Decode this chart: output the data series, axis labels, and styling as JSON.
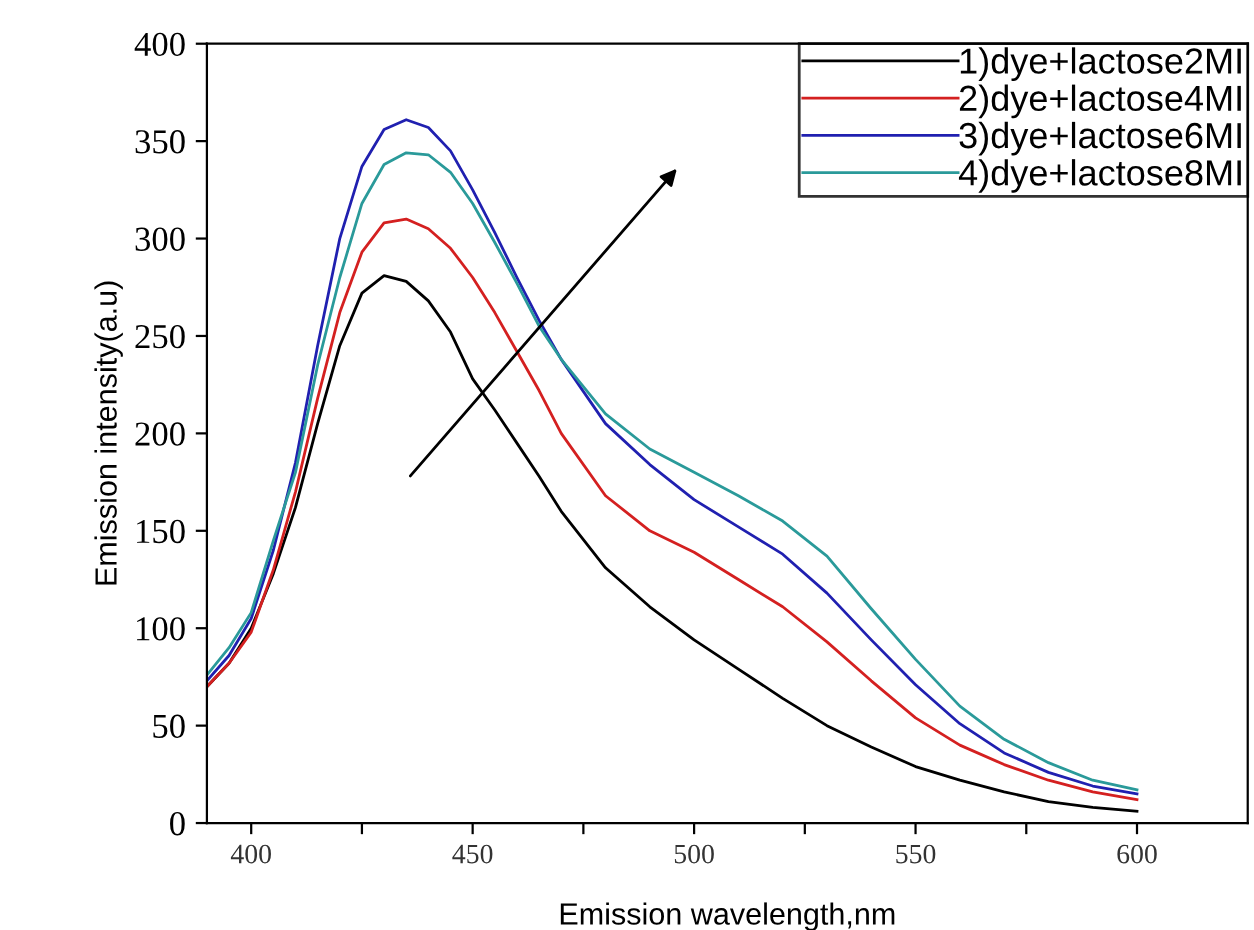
{
  "chart_data": {
    "type": "line",
    "xlabel": "Emission wavelength,nm",
    "ylabel": "Emission intensity(a.u)",
    "x": [
      390,
      395,
      400,
      405,
      410,
      415,
      420,
      425,
      430,
      435,
      440,
      445,
      450,
      455,
      460,
      465,
      470,
      480,
      490,
      500,
      510,
      520,
      530,
      540,
      550,
      560,
      570,
      580,
      590,
      600
    ],
    "series": [
      {
        "name": "1)dye+lactose2MI",
        "color": "#000000",
        "values": [
          70,
          82,
          100,
          128,
          162,
          205,
          245,
          272,
          281,
          278,
          268,
          252,
          228,
          212,
          195,
          178,
          160,
          131,
          111,
          94,
          79,
          64,
          50,
          39,
          29,
          22,
          16,
          11,
          8,
          6
        ]
      },
      {
        "name": "2)dye+lactose4MI",
        "color": "#d42020",
        "values": [
          70,
          82,
          98,
          130,
          170,
          218,
          262,
          293,
          308,
          310,
          305,
          295,
          280,
          262,
          242,
          222,
          200,
          168,
          150,
          139,
          125,
          111,
          93,
          73,
          54,
          40,
          30,
          22,
          16,
          12
        ]
      },
      {
        "name": "3)dye+lactose6MI",
        "color": "#2020b0",
        "values": [
          73,
          86,
          105,
          140,
          185,
          245,
          300,
          337,
          356,
          361,
          357,
          345,
          325,
          303,
          280,
          258,
          238,
          205,
          184,
          166,
          152,
          138,
          118,
          94,
          71,
          51,
          36,
          26,
          19,
          15
        ]
      },
      {
        "name": "4)dye+lactose8MI",
        "color": "#2a9a9a",
        "values": [
          76,
          90,
          108,
          145,
          180,
          235,
          280,
          318,
          338,
          344,
          343,
          334,
          318,
          298,
          277,
          255,
          238,
          210,
          192,
          180,
          168,
          155,
          137,
          110,
          84,
          60,
          43,
          31,
          22,
          17
        ]
      }
    ],
    "xlim": [
      390,
      625
    ],
    "ylim": [
      0,
      400
    ],
    "xticks": [
      400,
      {
        "value": 425,
        "label": null
      },
      450,
      {
        "value": 475,
        "label": null
      },
      500,
      {
        "value": 525,
        "label": null
      },
      550,
      {
        "value": 575,
        "label": null
      },
      600
    ],
    "yticks": [
      0,
      50,
      100,
      150,
      200,
      250,
      300,
      350,
      400
    ],
    "grid": false,
    "legend": "top right",
    "marker": "none",
    "line_style": "solid"
  }
}
